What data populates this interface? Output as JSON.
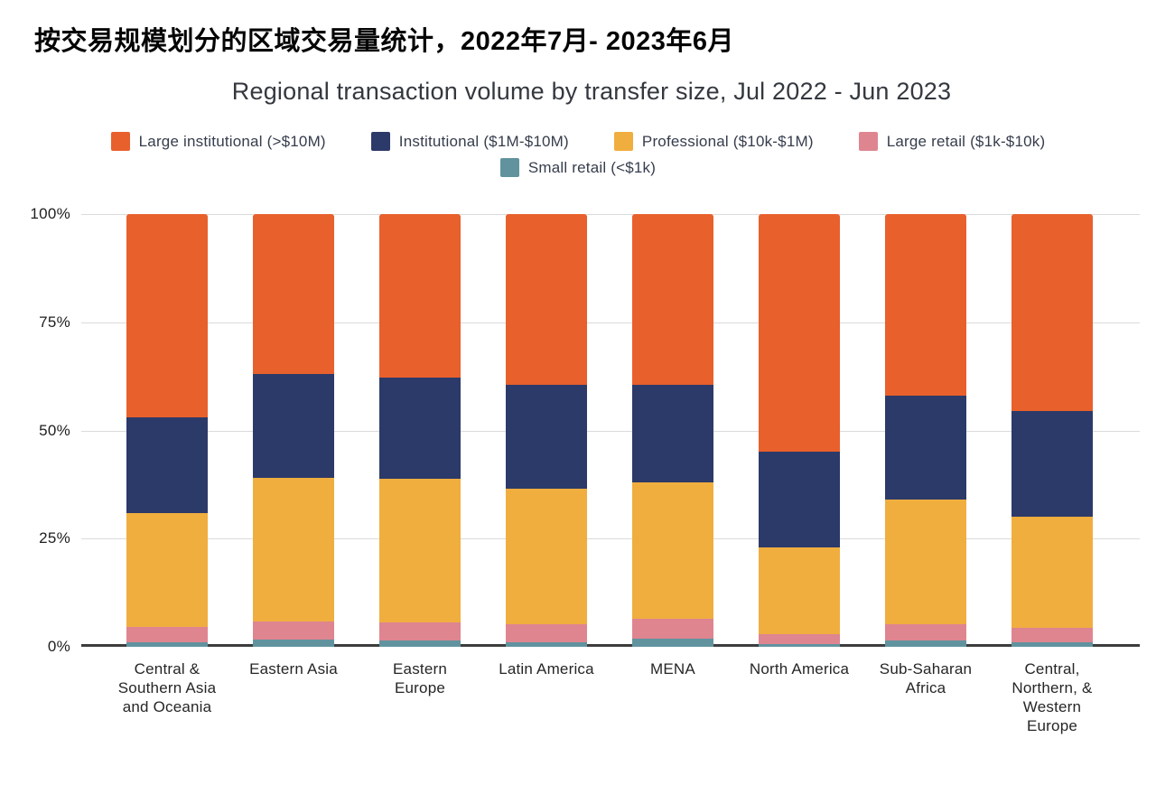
{
  "page_title": "按交易规模划分的区域交易量统计，2022年7月- 2023年6月",
  "chart_data": {
    "type": "bar",
    "stacked": true,
    "orientation": "vertical",
    "title": "Regional transaction volume by transfer size, Jul 2022 - Jun 2023",
    "legend_position": "top",
    "grid": true,
    "ylim": [
      0,
      100
    ],
    "y_unit": "%",
    "y_ticks": [
      "100%",
      "75%",
      "50%",
      "25%",
      "0%"
    ],
    "categories": [
      "Central & Southern Asia and Oceania",
      "Eastern Asia",
      "Eastern Europe",
      "Latin America",
      "MENA",
      "North America",
      "Sub-Saharan Africa",
      "Central, Northern, & Western Europe"
    ],
    "category_lines": [
      [
        "Central &",
        "Southern Asia",
        "and Oceania"
      ],
      [
        "Eastern Asia"
      ],
      [
        "Eastern",
        "Europe"
      ],
      [
        "Latin America"
      ],
      [
        "MENA"
      ],
      [
        "North America"
      ],
      [
        "Sub-Saharan",
        "Africa"
      ],
      [
        "Central,",
        "Northern, &",
        "Western",
        "Europe"
      ]
    ],
    "series": [
      {
        "name": "Large institutional (>$10M)",
        "color": "#E8602C",
        "values": [
          47.0,
          37.0,
          37.7,
          39.5,
          39.5,
          55.0,
          42.0,
          45.5
        ]
      },
      {
        "name": "Institutional ($1M-$10M)",
        "color": "#2C3A69",
        "values": [
          22.0,
          24.0,
          23.4,
          24.0,
          22.5,
          22.0,
          24.0,
          24.5
        ]
      },
      {
        "name": "Professional ($10k-$1M)",
        "color": "#F0AE3F",
        "values": [
          26.3,
          33.2,
          33.2,
          31.2,
          31.5,
          20.0,
          28.7,
          25.6
        ]
      },
      {
        "name": "Large retail ($1k-$10k)",
        "color": "#DF8590",
        "values": [
          3.7,
          4.2,
          4.3,
          4.3,
          4.7,
          2.3,
          3.9,
          3.4
        ]
      },
      {
        "name": "Small retail (<$1k)",
        "color": "#61939F",
        "values": [
          1.0,
          1.6,
          1.4,
          1.0,
          1.8,
          0.7,
          1.4,
          1.0
        ]
      }
    ]
  }
}
